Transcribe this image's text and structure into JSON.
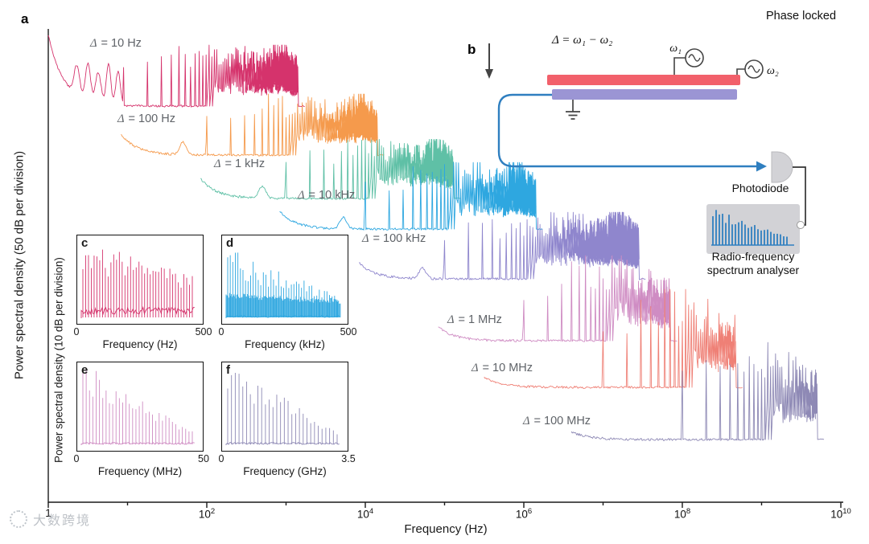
{
  "watermark": {
    "text": "大数跨境"
  },
  "inset_shared_ylabel": "Power spectral density (10 dB per division)",
  "diagram": {
    "panel_label": "b",
    "equation": "Δ = ω₁ − ω₂",
    "phase_locked": "Phase locked",
    "osc1": "ω₁",
    "osc2": "ω₂",
    "photodiode": "Photodiode",
    "analyser": [
      "Radio-frequency",
      "spectrum analyser"
    ],
    "colors": {
      "electrode": "#f2606b",
      "resonator": "#9b95d4",
      "fiber": "#2f7fc0",
      "device_grey": "#d2d2d6"
    }
  },
  "chart_data": [
    {
      "id": "main",
      "panel": "a",
      "type": "line",
      "title": "",
      "xlabel": "Frequency (Hz)",
      "ylabel": "Power spectral density (50 dB per division)",
      "x_scale": "log",
      "x_range_log10": [
        0,
        10
      ],
      "grid": false,
      "legend": "inline-labels",
      "x_ticks": [
        {
          "base": "1",
          "exp": "",
          "log10": 0
        },
        {
          "base": "10",
          "exp": "2",
          "log10": 2
        },
        {
          "base": "10",
          "exp": "4",
          "log10": 4
        },
        {
          "base": "10",
          "exp": "6",
          "log10": 6
        },
        {
          "base": "10",
          "exp": "8",
          "log10": 8
        },
        {
          "base": "10",
          "exp": "10",
          "log10": 10
        }
      ],
      "series": [
        {
          "label_sym": "Δ",
          "label_rest": " = 10 Hz",
          "delta_hz": 10,
          "color": "#d5336c",
          "log_start": 0.0,
          "log_comb": 0.95,
          "log_end": 3.15,
          "base_y": 132,
          "peak_h": 66,
          "start_drop": 88,
          "end_hump": true,
          "seed": 11,
          "label_x": 112,
          "label_y": 46,
          "pre_bumps": [
            {
              "c": 0.36,
              "h": 36,
              "w": 0.05
            },
            {
              "c": 0.5,
              "h": 46,
              "w": 0.045
            },
            {
              "c": 0.63,
              "h": 38,
              "w": 0.05
            },
            {
              "c": 0.76,
              "h": 50,
              "w": 0.04
            },
            {
              "c": 0.88,
              "h": 42,
              "w": 0.04
            }
          ]
        },
        {
          "label_sym": "Δ",
          "label_rest": " = 100 Hz",
          "delta_hz": 100,
          "color": "#f59a4c",
          "log_start": 0.92,
          "log_comb": 2.0,
          "log_end": 4.15,
          "base_y": 193,
          "peak_h": 66,
          "start_drop": 26,
          "end_hump": true,
          "seed": 22,
          "label_x": 146,
          "label_y": 140,
          "pre_bumps": [
            {
              "c": 1.7,
              "h": 16,
              "w": 0.06
            }
          ]
        },
        {
          "label_sym": "Δ",
          "label_rest": " = 1 kHz",
          "delta_hz": 1000,
          "color": "#5fc0a6",
          "log_start": 1.92,
          "log_comb": 3.0,
          "log_end": 5.12,
          "base_y": 247,
          "peak_h": 64,
          "start_drop": 25,
          "end_hump": true,
          "seed": 33,
          "label_x": 266,
          "label_y": 196,
          "pre_bumps": [
            {
              "c": 2.7,
              "h": 15,
              "w": 0.06
            }
          ]
        },
        {
          "label_sym": "Δ",
          "label_rest": " = 10 kHz",
          "delta_hz": 10000,
          "color": "#2ea7e0",
          "log_start": 2.92,
          "log_comb": 4.0,
          "log_end": 6.15,
          "base_y": 285,
          "peak_h": 72,
          "start_drop": 22,
          "end_hump": true,
          "seed": 44,
          "label_x": 370,
          "label_y": 235,
          "pre_bumps": [
            {
              "c": 3.72,
              "h": 14,
              "w": 0.06
            }
          ]
        },
        {
          "label_sym": "Δ",
          "label_rest": " = 100 kHz",
          "delta_hz": 100000,
          "color": "#8f86cd",
          "log_start": 3.92,
          "log_comb": 5.0,
          "log_end": 7.45,
          "base_y": 347,
          "peak_h": 72,
          "start_drop": 20,
          "end_hump": true,
          "seed": 55,
          "label_x": 450,
          "label_y": 289,
          "pre_bumps": [
            {
              "c": 4.72,
              "h": 13,
              "w": 0.06
            }
          ]
        },
        {
          "label_sym": "Δ",
          "label_rest": " = 1 MHz",
          "delta_hz": 1000000,
          "color": "#cf8cc3",
          "log_start": 4.92,
          "log_comb": 6.0,
          "log_end": 7.85,
          "base_y": 424,
          "peak_h": 92,
          "start_drop": 17,
          "end_hump": false,
          "seed": 66,
          "label_x": 556,
          "label_y": 390
        },
        {
          "label_sym": "Δ",
          "label_rest": " = 10 MHz",
          "delta_hz": 10000000,
          "color": "#ef8076",
          "log_start": 5.5,
          "log_comb": 7.0,
          "log_end": 8.68,
          "base_y": 482,
          "peak_h": 106,
          "start_drop": 13,
          "end_hump": false,
          "seed": 77,
          "label_x": 586,
          "label_y": 450
        },
        {
          "label_sym": "Δ",
          "label_rest": " = 100 MHz",
          "delta_hz": 100000000,
          "color": "#8e89b5",
          "log_start": 6.6,
          "log_comb": 8.0,
          "log_end": 9.7,
          "base_y": 547,
          "peak_h": 105,
          "start_drop": 10,
          "end_hump": false,
          "seed": 88,
          "label_x": 650,
          "label_y": 516
        }
      ]
    },
    {
      "id": "inset_c",
      "panel": "c",
      "type": "line",
      "color": "#d5336c",
      "xlabel": "Frequency (Hz)",
      "x_ticks": [
        "0",
        "500"
      ],
      "x_range": [
        0,
        500
      ],
      "n_teeth": 40,
      "style": "noisy-comb",
      "seed": 3
    },
    {
      "id": "inset_d",
      "panel": "d",
      "type": "line",
      "color": "#2ea7e0",
      "xlabel": "Frequency (kHz)",
      "x_ticks": [
        "0",
        "500"
      ],
      "x_range": [
        0,
        500
      ],
      "n_teeth": 44,
      "style": "band-comb",
      "seed": 4
    },
    {
      "id": "inset_e",
      "panel": "e",
      "type": "line",
      "color": "#cf8cc3",
      "xlabel": "Frequency (MHz)",
      "x_ticks": [
        "0",
        "50"
      ],
      "x_range": [
        0,
        50
      ],
      "n_teeth": 34,
      "style": "decay-comb",
      "seed": 5
    },
    {
      "id": "inset_f",
      "panel": "f",
      "type": "line",
      "color": "#8e89b5",
      "xlabel": "Frequency (GHz)",
      "x_ticks": [
        "0",
        "3.5"
      ],
      "x_range": [
        0,
        3.5
      ],
      "n_teeth": 30,
      "style": "decay-comb",
      "seed": 6
    }
  ]
}
